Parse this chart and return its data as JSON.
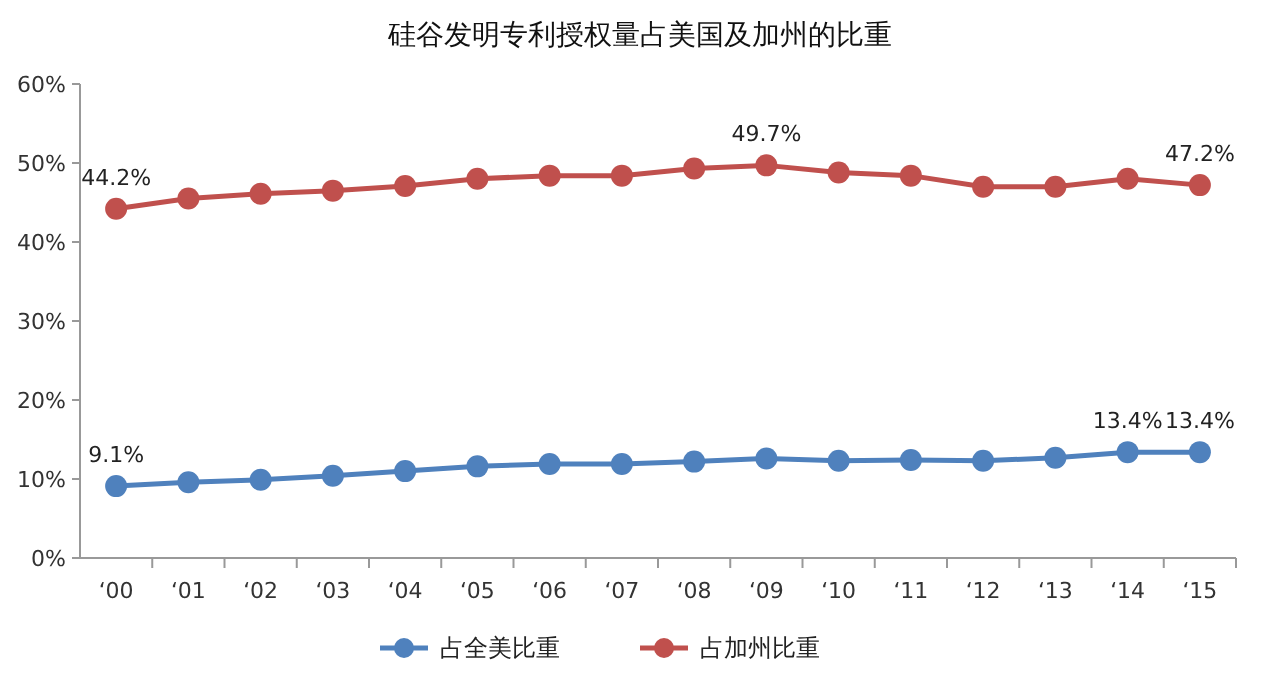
{
  "chart_data": {
    "type": "line",
    "title": "硅谷发明专利授权量占美国及加州的比重",
    "categories": [
      "‘00",
      "‘01",
      "‘02",
      "‘03",
      "‘04",
      "‘05",
      "‘06",
      "‘07",
      "‘08",
      "‘09",
      "‘10",
      "‘11",
      "‘12",
      "‘13",
      "‘14",
      "‘15"
    ],
    "series": [
      {
        "name": "占全美比重",
        "color": "#4f81bd",
        "values": [
          9.1,
          9.6,
          9.9,
          10.4,
          11.0,
          11.6,
          11.9,
          11.9,
          12.2,
          12.6,
          12.3,
          12.4,
          12.3,
          12.7,
          13.4,
          13.4
        ],
        "value_labels": [
          "9.1%",
          null,
          null,
          null,
          null,
          null,
          null,
          null,
          null,
          null,
          null,
          null,
          null,
          null,
          "13.4%",
          "13.4%"
        ]
      },
      {
        "name": "占加州比重",
        "color": "#c0504d",
        "values": [
          44.2,
          45.5,
          46.1,
          46.5,
          47.1,
          48.0,
          48.4,
          48.4,
          49.3,
          49.7,
          48.8,
          48.4,
          47.0,
          47.0,
          48.0,
          47.2
        ],
        "value_labels": [
          "44.2%",
          null,
          null,
          null,
          null,
          null,
          null,
          null,
          null,
          "49.7%",
          null,
          null,
          null,
          null,
          null,
          "47.2%"
        ]
      }
    ],
    "ylim": [
      0,
      60
    ],
    "yticks": [
      {
        "value": 0,
        "label": "0%"
      },
      {
        "value": 10,
        "label": "10%"
      },
      {
        "value": 20,
        "label": "20%"
      },
      {
        "value": 30,
        "label": "30%"
      },
      {
        "value": 40,
        "label": "40%"
      },
      {
        "value": 50,
        "label": "50%"
      },
      {
        "value": 60,
        "label": "60%"
      }
    ],
    "grid": false,
    "legend": "bottom",
    "marker": "circle",
    "line_style": "solid"
  }
}
